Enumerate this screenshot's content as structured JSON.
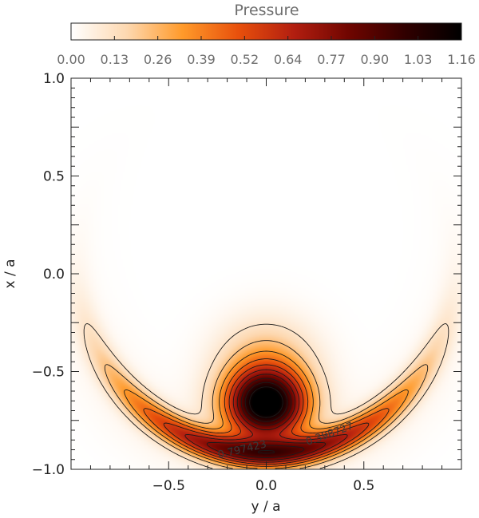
{
  "chart_data": {
    "type": "heatmap",
    "title": "Pressure",
    "xlabel": "y / a",
    "ylabel": "x / a",
    "xlim": [
      -1.0,
      1.0
    ],
    "ylim": [
      -1.0,
      1.0
    ],
    "xticks": [
      "-0.5",
      "0.0",
      "0.5"
    ],
    "yticks": [
      "-1.0",
      "-0.5",
      "0.0",
      "0.5",
      "1.0"
    ],
    "colorbar": {
      "ticks": [
        "0.00",
        "0.13",
        "0.26",
        "0.39",
        "0.52",
        "0.64",
        "0.77",
        "0.90",
        "1.03",
        "1.16"
      ],
      "min": 0.0,
      "max": 1.16,
      "colormap": [
        "#ffffff",
        "#fdd8b0",
        "#ff9a2a",
        "#e8500c",
        "#b21e10",
        "#6e0500",
        "#300000",
        "#000000"
      ]
    },
    "contour_labels": [
      "0.797423",
      "0.398727"
    ],
    "features": [
      {
        "name": "central lobe",
        "center_y": 0.0,
        "center_x": -0.67,
        "peak": 1.16
      },
      {
        "name": "crescent lobe",
        "center_y": 0.0,
        "center_x": -0.93,
        "peak": 0.8
      }
    ],
    "grid": false
  }
}
